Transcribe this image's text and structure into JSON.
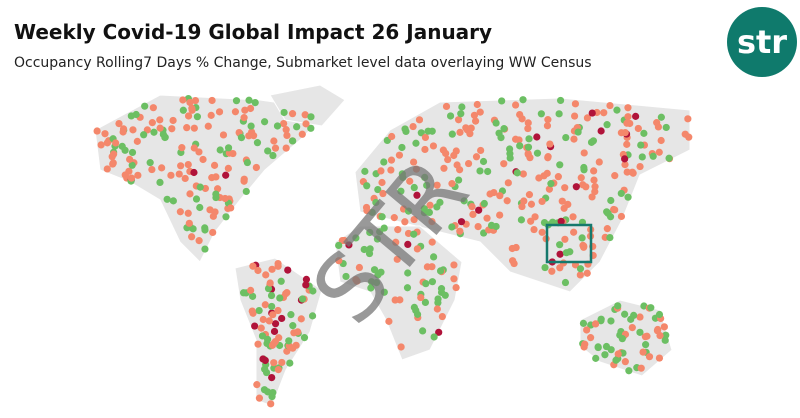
{
  "header": {
    "title": "Weekly Covid-19 Global Impact 26 January",
    "subtitle": "Occupancy Rolling7 Days % Change, Submarket level data overlaying WW Census"
  },
  "logo": {
    "text": "str"
  },
  "map": {
    "watermark": "STR"
  }
}
